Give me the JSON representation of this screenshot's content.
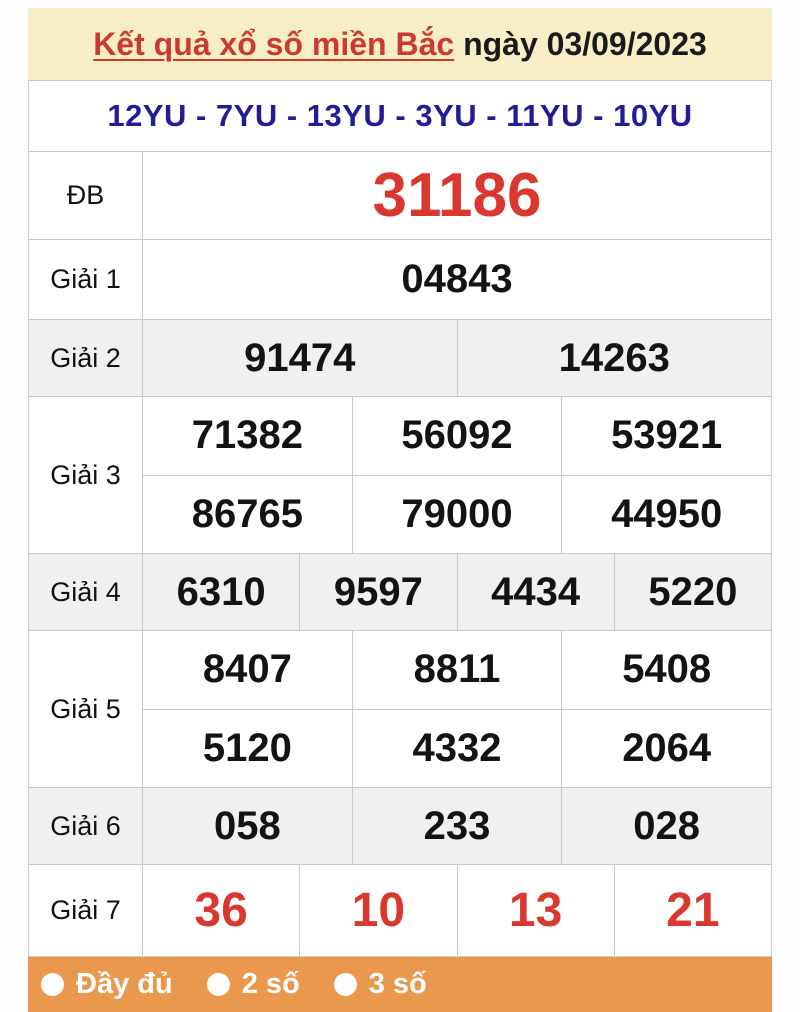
{
  "page": {
    "banner": {
      "title_link": "Kết quả xổ số miền Bắc",
      "title_rest": " ngày 03/09/2023"
    },
    "codes_line": "12YU - 7YU - 13YU - 3YU - 11YU - 10YU",
    "results": {
      "rows": [
        {
          "label": "ĐB",
          "emphasis": "special",
          "shaded": false,
          "values": [
            [
              "31186"
            ]
          ]
        },
        {
          "label": "Giải 1",
          "emphasis": "none",
          "shaded": false,
          "values": [
            [
              "04843"
            ]
          ]
        },
        {
          "label": "Giải 2",
          "emphasis": "none",
          "shaded": true,
          "values": [
            [
              "91474",
              "14263"
            ]
          ]
        },
        {
          "label": "Giải 3",
          "emphasis": "none",
          "shaded": false,
          "values": [
            [
              "71382",
              "56092",
              "53921"
            ],
            [
              "86765",
              "79000",
              "44950"
            ]
          ]
        },
        {
          "label": "Giải 4",
          "emphasis": "none",
          "shaded": true,
          "values": [
            [
              "6310",
              "9597",
              "4434",
              "5220"
            ]
          ]
        },
        {
          "label": "Giải 5",
          "emphasis": "none",
          "shaded": false,
          "values": [
            [
              "8407",
              "8811",
              "5408"
            ],
            [
              "5120",
              "4332",
              "2064"
            ]
          ]
        },
        {
          "label": "Giải 6",
          "emphasis": "none",
          "shaded": true,
          "values": [
            [
              "058",
              "233",
              "028"
            ]
          ]
        },
        {
          "label": "Giải 7",
          "emphasis": "red",
          "shaded": false,
          "values": [
            [
              "36",
              "10",
              "13",
              "21"
            ]
          ]
        }
      ]
    },
    "footer": {
      "options": [
        "Đầy đủ",
        "2 số",
        "3 số"
      ]
    },
    "colors": {
      "banner_bg": "#F7EEC6",
      "title_red": "#CB3A32",
      "codes_blue": "#221C99",
      "number_red": "#DA382E",
      "shaded_row_bg": "#F0F0EF",
      "footer_orange": "#E9984E",
      "border": "#C9C9C9"
    }
  }
}
